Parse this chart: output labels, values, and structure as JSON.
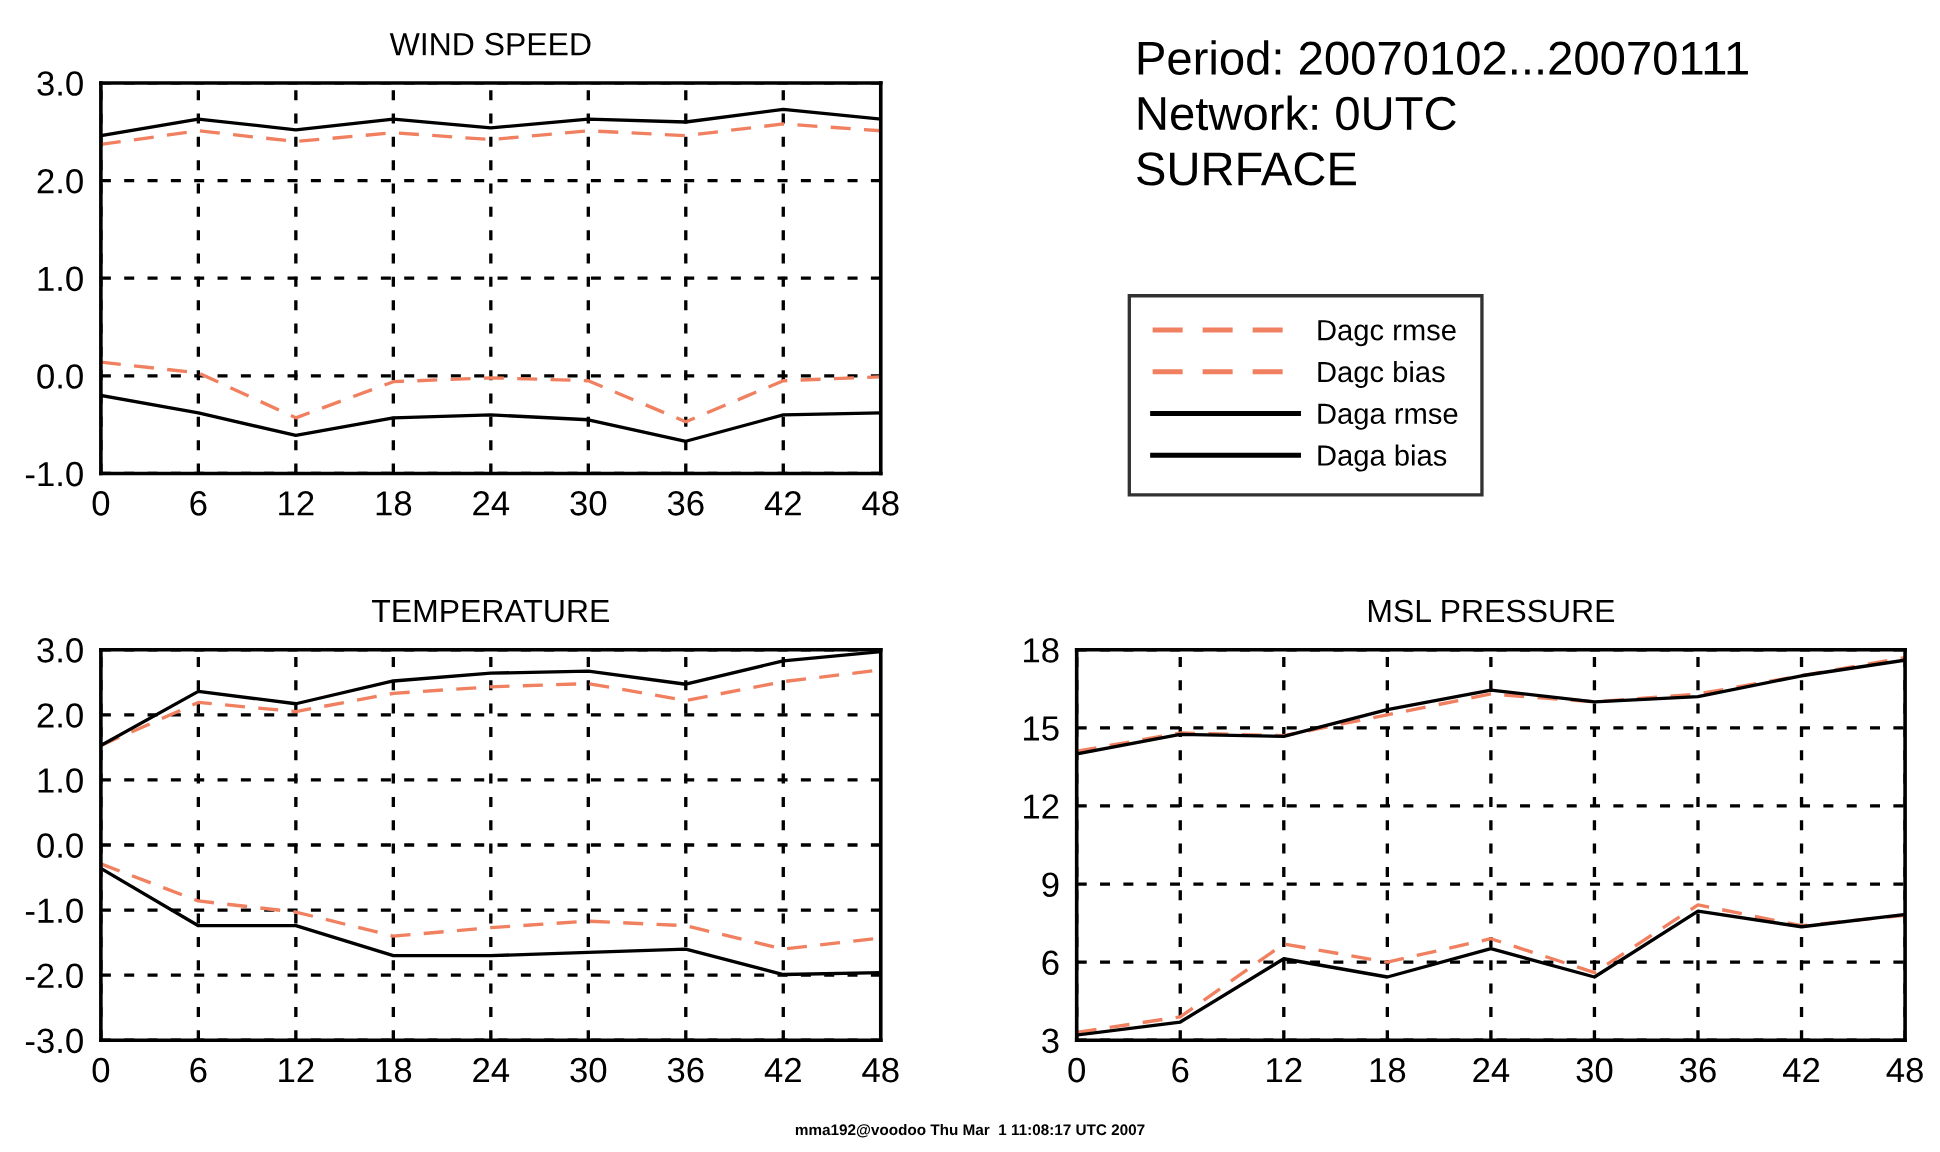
{
  "chart_data": [
    {
      "type": "line",
      "title": "WIND SPEED",
      "x": [
        0,
        6,
        12,
        18,
        24,
        30,
        36,
        42,
        48
      ],
      "xlim": [
        0,
        48
      ],
      "xticks": [
        0,
        6,
        12,
        18,
        24,
        30,
        36,
        42,
        48
      ],
      "ylim": [
        -1,
        3
      ],
      "yticks": [
        {
          "value": -1,
          "label": "-1.0"
        },
        {
          "value": 0,
          "label": "0.0"
        },
        {
          "value": 1,
          "label": "1.0"
        },
        {
          "value": 2,
          "label": "2.0"
        },
        {
          "value": 3,
          "label": "3.0"
        }
      ],
      "grid": true,
      "legend": "right",
      "annotations": [
        "Period: 20070102...20070111",
        "Network: 0UTC",
        "SURFACE"
      ],
      "series": [
        {
          "name": "Dagc rmse",
          "color": "#f08060",
          "line_style": "dashed",
          "values": [
            2.37,
            2.51,
            2.4,
            2.49,
            2.42,
            2.51,
            2.46,
            2.58,
            2.51
          ]
        },
        {
          "name": "Dagc bias",
          "color": "#f08060",
          "line_style": "dashed",
          "values": [
            0.14,
            0.03,
            -0.43,
            -0.06,
            -0.02,
            -0.05,
            -0.47,
            -0.05,
            -0.01
          ]
        },
        {
          "name": "Daga rmse",
          "color": "#000000",
          "line_style": "solid",
          "values": [
            2.46,
            2.63,
            2.52,
            2.63,
            2.54,
            2.63,
            2.6,
            2.73,
            2.63
          ]
        },
        {
          "name": "Daga bias",
          "color": "#000000",
          "line_style": "solid",
          "values": [
            -0.2,
            -0.38,
            -0.61,
            -0.43,
            -0.4,
            -0.45,
            -0.67,
            -0.4,
            -0.38
          ]
        }
      ]
    },
    {
      "type": "line",
      "title": "TEMPERATURE",
      "x": [
        0,
        6,
        12,
        18,
        24,
        30,
        36,
        42,
        48
      ],
      "xlim": [
        0,
        48
      ],
      "xticks": [
        0,
        6,
        12,
        18,
        24,
        30,
        36,
        42,
        48
      ],
      "ylim": [
        -3,
        3
      ],
      "yticks": [
        {
          "value": -3,
          "label": "-3.0"
        },
        {
          "value": -2,
          "label": "-2.0"
        },
        {
          "value": -1,
          "label": "-1.0"
        },
        {
          "value": 0,
          "label": "0.0"
        },
        {
          "value": 1,
          "label": "1.0"
        },
        {
          "value": 2,
          "label": "2.0"
        },
        {
          "value": 3,
          "label": "3.0"
        }
      ],
      "grid": true,
      "annotations": [
        "mma192@voodoo Thu Mar  1 11:08:17 UTC 2007"
      ],
      "series": [
        {
          "color": "#f08060",
          "line_style": "dashed",
          "values": [
            1.53,
            2.19,
            2.05,
            2.33,
            2.43,
            2.48,
            2.22,
            2.51,
            2.69
          ]
        },
        {
          "color": "#f08060",
          "line_style": "dashed",
          "values": [
            -0.29,
            -0.86,
            -1.03,
            -1.4,
            -1.27,
            -1.17,
            -1.24,
            -1.6,
            -1.43
          ]
        },
        {
          "color": "#000000",
          "line_style": "solid",
          "values": [
            1.53,
            2.36,
            2.17,
            2.52,
            2.64,
            2.67,
            2.47,
            2.83,
            2.97
          ]
        },
        {
          "color": "#000000",
          "line_style": "solid",
          "values": [
            -0.36,
            -1.24,
            -1.24,
            -1.7,
            -1.7,
            -1.65,
            -1.6,
            -1.99,
            -1.96
          ]
        }
      ]
    },
    {
      "type": "line",
      "title": "MSL PRESSURE",
      "x": [
        0,
        6,
        12,
        18,
        24,
        30,
        36,
        42,
        48
      ],
      "xlim": [
        0,
        48
      ],
      "xticks": [
        0,
        6,
        12,
        18,
        24,
        30,
        36,
        42,
        48
      ],
      "ylim": [
        3,
        18
      ],
      "yticks": [
        3,
        6,
        9,
        12,
        15,
        18
      ],
      "grid": true,
      "series": [
        {
          "color": "#f08060",
          "line_style": "dashed",
          "values": [
            14.1,
            14.8,
            14.7,
            15.5,
            16.3,
            16.0,
            16.3,
            17.0,
            17.7
          ]
        },
        {
          "color": "#f08060",
          "line_style": "dashed",
          "values": [
            3.3,
            3.9,
            6.7,
            6.0,
            6.9,
            5.6,
            8.2,
            7.4,
            7.8
          ]
        },
        {
          "color": "#000000",
          "line_style": "solid",
          "values": [
            14.0,
            14.75,
            14.67,
            15.7,
            16.45,
            16.0,
            16.2,
            17.0,
            17.6
          ]
        },
        {
          "color": "#000000",
          "line_style": "solid",
          "values": [
            3.2,
            3.7,
            6.13,
            5.43,
            6.52,
            5.43,
            7.96,
            7.36,
            7.83
          ]
        }
      ]
    }
  ]
}
